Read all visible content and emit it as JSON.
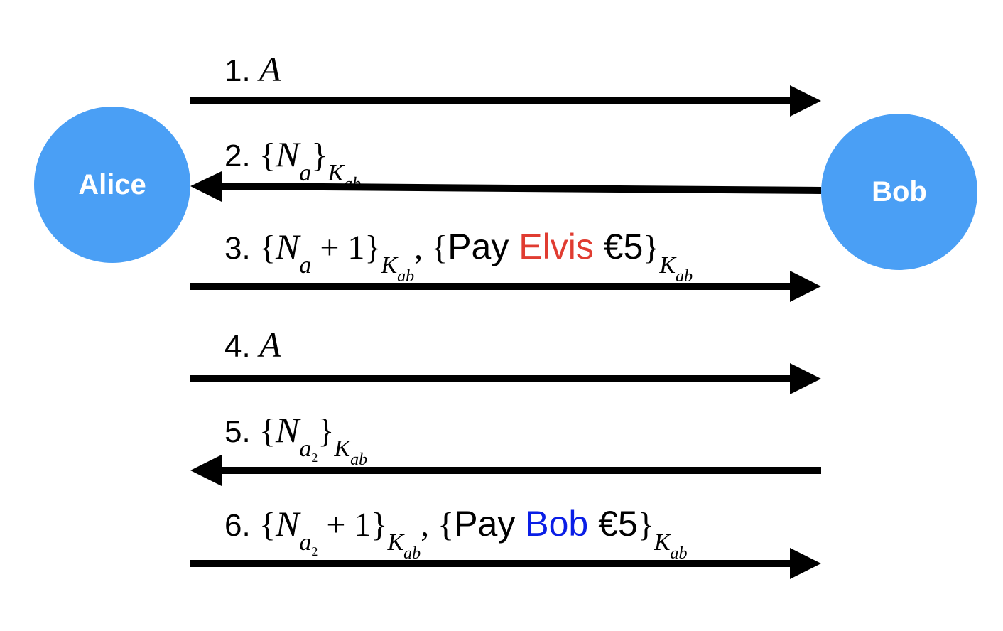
{
  "participants": {
    "alice": "Alice",
    "bob": "Bob"
  },
  "messages": [
    {
      "number": "1.",
      "direction": "right",
      "content": "A"
    },
    {
      "number": "2.",
      "direction": "left",
      "content": "{N_a}_{K_ab}"
    },
    {
      "number": "3.",
      "direction": "right",
      "content": "{N_a + 1}_{K_ab}, {Pay Elvis €5}_{K_ab}",
      "payee": "Elvis"
    },
    {
      "number": "4.",
      "direction": "right",
      "content": "A"
    },
    {
      "number": "5.",
      "direction": "left",
      "content": "{N_a2}_{K_ab}"
    },
    {
      "number": "6.",
      "direction": "right",
      "content": "{N_a2 + 1}_{K_ab}, {Pay Bob €5}_{K_ab}",
      "payee": "Bob"
    }
  ],
  "text": {
    "pay": "Pay",
    "amount": "€5",
    "elvis": "Elvis",
    "bob": "Bob"
  },
  "colors": {
    "node": "#4a9ff5",
    "elvis": "#e03c31",
    "bob_text": "#0a1ee6",
    "arrow": "#000000"
  }
}
